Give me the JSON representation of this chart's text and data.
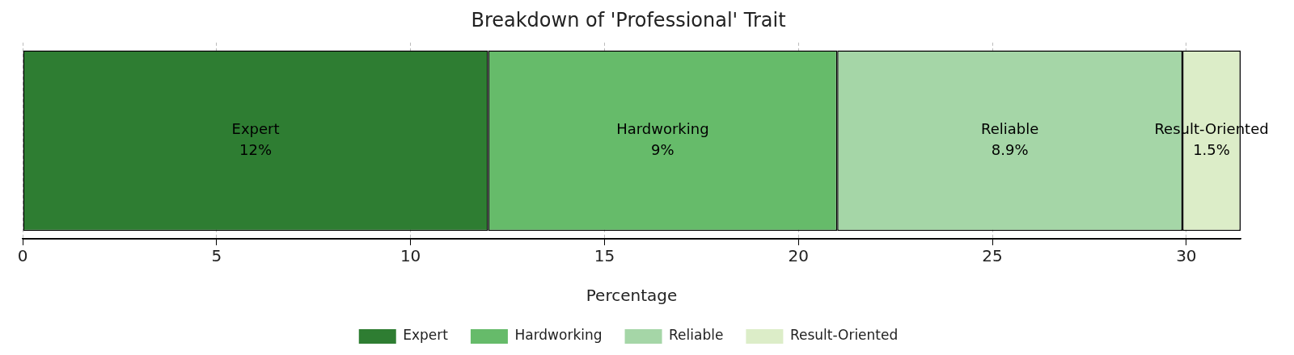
{
  "chart_data": {
    "type": "bar",
    "orientation": "horizontal",
    "stacked": true,
    "title": "Breakdown of 'Professional' Trait",
    "xlabel": "Percentage",
    "categories": [
      null
    ],
    "series": [
      {
        "name": "Expert",
        "color": "#2e7d32",
        "values": [
          12
        ],
        "value_labels": [
          "12%"
        ]
      },
      {
        "name": "Hardworking",
        "color": "#66bb6a",
        "values": [
          9
        ],
        "value_labels": [
          "9%"
        ]
      },
      {
        "name": "Reliable",
        "color": "#a5d6a7",
        "values": [
          8.9
        ],
        "value_labels": [
          "8.9%"
        ]
      },
      {
        "name": "Result-Oriented",
        "color": "#dcedc8",
        "values": [
          1.5
        ],
        "value_labels": [
          "1.5%"
        ]
      }
    ],
    "xlim": [
      0,
      31.4
    ],
    "xticks": [
      0,
      5,
      10,
      15,
      20,
      25,
      30
    ],
    "grid": "x",
    "legend": "bottom",
    "tick_labels": "x"
  }
}
